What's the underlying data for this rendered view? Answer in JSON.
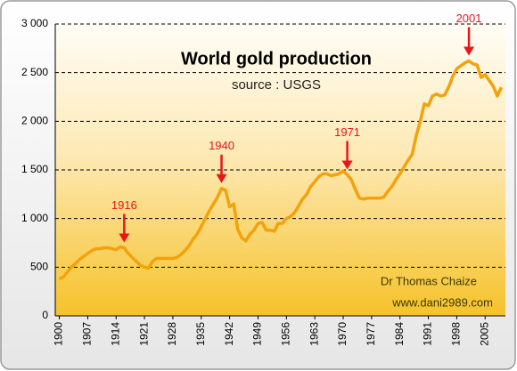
{
  "chart_data": {
    "type": "line",
    "title": "World gold production",
    "subtitle": "source : USGS",
    "credits": [
      "Dr Thomas Chaize",
      "www.dani2989.com"
    ],
    "annotations": [
      1916,
      1940,
      1971,
      2001
    ],
    "color": "#f2a20c",
    "annotation_color": "#e8161b",
    "grid": true,
    "x": [
      1900,
      1901,
      1902,
      1903,
      1904,
      1905,
      1906,
      1907,
      1908,
      1909,
      1910,
      1911,
      1912,
      1913,
      1914,
      1915,
      1916,
      1917,
      1918,
      1919,
      1920,
      1921,
      1922,
      1923,
      1924,
      1925,
      1926,
      1927,
      1928,
      1929,
      1930,
      1931,
      1932,
      1933,
      1934,
      1935,
      1936,
      1937,
      1938,
      1939,
      1940,
      1941,
      1942,
      1943,
      1944,
      1945,
      1946,
      1947,
      1948,
      1949,
      1950,
      1951,
      1952,
      1953,
      1954,
      1955,
      1956,
      1957,
      1958,
      1959,
      1960,
      1961,
      1962,
      1963,
      1964,
      1965,
      1966,
      1967,
      1968,
      1969,
      1970,
      1971,
      1972,
      1973,
      1974,
      1975,
      1976,
      1977,
      1978,
      1979,
      1980,
      1981,
      1982,
      1983,
      1984,
      1985,
      1986,
      1987,
      1988,
      1989,
      1990,
      1991,
      1992,
      1993,
      1994,
      1995,
      1996,
      1997,
      1998,
      1999,
      2000,
      2001,
      2002,
      2003,
      2004,
      2005,
      2006,
      2007,
      2008,
      2009
    ],
    "values": [
      380,
      400,
      450,
      500,
      540,
      580,
      610,
      640,
      670,
      690,
      690,
      700,
      700,
      690,
      680,
      710,
      700,
      640,
      600,
      560,
      520,
      500,
      490,
      560,
      590,
      590,
      590,
      590,
      590,
      600,
      630,
      670,
      720,
      790,
      840,
      920,
      1000,
      1080,
      1150,
      1220,
      1310,
      1290,
      1120,
      1150,
      890,
      800,
      770,
      840,
      880,
      950,
      960,
      880,
      880,
      870,
      950,
      950,
      1000,
      1020,
      1060,
      1130,
      1200,
      1250,
      1330,
      1380,
      1430,
      1460,
      1460,
      1440,
      1450,
      1460,
      1490,
      1450,
      1400,
      1300,
      1210,
      1200,
      1210,
      1210,
      1210,
      1210,
      1220,
      1280,
      1330,
      1400,
      1460,
      1530,
      1600,
      1660,
      1850,
      2000,
      2180,
      2160,
      2260,
      2280,
      2260,
      2270,
      2350,
      2460,
      2540,
      2570,
      2600,
      2620,
      2590,
      2580,
      2450,
      2480,
      2420,
      2360,
      2260,
      2350
    ],
    "xlim": [
      1899,
      2010
    ],
    "xticks": [
      1900,
      1907,
      1914,
      1921,
      1928,
      1935,
      1942,
      1949,
      1956,
      1963,
      1970,
      1977,
      1984,
      1991,
      1998,
      2005
    ],
    "ylim": [
      0,
      3000
    ],
    "yticks": [
      0,
      500,
      {
        "value": 1000,
        "label": "1 000"
      },
      {
        "value": 1500,
        "label": "1 500"
      },
      {
        "value": 2000,
        "label": "2 000"
      },
      {
        "value": 2500,
        "label": "2 500"
      },
      {
        "value": 3000,
        "label": "3 000"
      }
    ]
  }
}
